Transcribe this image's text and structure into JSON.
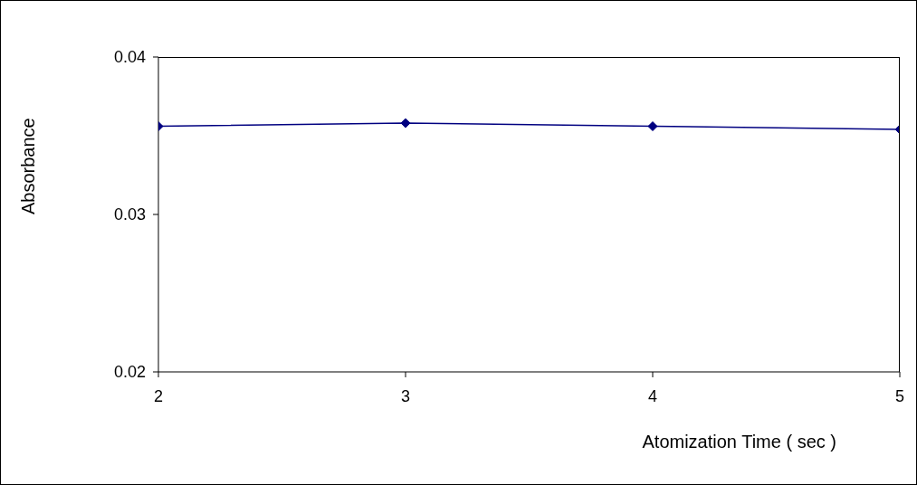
{
  "chart_data": {
    "type": "line",
    "xlabel": "Atomization Time ( sec )",
    "ylabel": "Absorbance",
    "x": [
      2,
      3,
      4,
      5
    ],
    "series": [
      {
        "color": "#000080",
        "values": [
          0.0356,
          0.0358,
          0.0356,
          0.0354
        ]
      }
    ],
    "xlim": [
      2,
      5
    ],
    "xticks": [
      2,
      3,
      4,
      5
    ],
    "ylim": [
      0.02,
      0.04
    ],
    "yticks": [
      0.02,
      0.03,
      0.04
    ],
    "grid": false,
    "legend": false,
    "marker": "diamond",
    "line_style": "solid"
  }
}
